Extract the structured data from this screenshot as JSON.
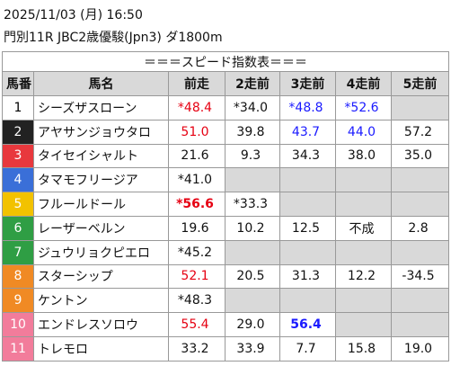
{
  "header": {
    "date": "2025/11/03 (月) 16:50",
    "race": "門別11R JBC2歳優駿(Jpn3) ダ1800m"
  },
  "table": {
    "title": "＝＝＝スピード指数表＝＝＝",
    "columns": [
      "馬番",
      "馬名",
      "前走",
      "2走前",
      "3走前",
      "4走前",
      "5走前"
    ],
    "header_color": "#d9d9d9",
    "empty_color": "#d9d9d9",
    "rows": [
      {
        "number": "1",
        "frame_color": "#ffffff",
        "number_color": "#000000",
        "name": "シーズザスローン",
        "cells": [
          {
            "text": "*48.4",
            "color": "#e60012"
          },
          {
            "text": "*34.0"
          },
          {
            "text": "*48.8",
            "color": "#1a1aff"
          },
          {
            "text": "*52.6",
            "color": "#1a1aff"
          },
          null
        ]
      },
      {
        "number": "2",
        "frame_color": "#222222",
        "number_color": "#ffffff",
        "name": "アヤサンジョウタロ",
        "cells": [
          {
            "text": "51.0",
            "color": "#e60012"
          },
          {
            "text": "39.8"
          },
          {
            "text": "43.7",
            "color": "#1a1aff"
          },
          {
            "text": "44.0",
            "color": "#1a1aff"
          },
          {
            "text": "57.2"
          }
        ]
      },
      {
        "number": "3",
        "frame_color": "#e8383d",
        "number_color": "#ffffff",
        "name": "タイセイシャルト",
        "cells": [
          {
            "text": "21.6"
          },
          {
            "text": "9.3"
          },
          {
            "text": "34.3"
          },
          {
            "text": "38.0"
          },
          {
            "text": "35.0"
          }
        ]
      },
      {
        "number": "4",
        "frame_color": "#3a6fd8",
        "number_color": "#ffffff",
        "name": "タマモフリージア",
        "cells": [
          {
            "text": "*41.0"
          },
          null,
          null,
          null,
          null
        ]
      },
      {
        "number": "5",
        "frame_color": "#f2c200",
        "number_color": "#ffffff",
        "name": "フルールドール",
        "cells": [
          {
            "text": "*56.6",
            "color": "#e60012",
            "bold": true
          },
          {
            "text": "*33.3"
          },
          null,
          null,
          null
        ]
      },
      {
        "number": "6",
        "frame_color": "#2f9e44",
        "number_color": "#ffffff",
        "name": "レーザーベルン",
        "cells": [
          {
            "text": "19.6"
          },
          {
            "text": "10.2"
          },
          {
            "text": "12.5"
          },
          {
            "text": "不成"
          },
          {
            "text": "2.8"
          }
        ]
      },
      {
        "number": "7",
        "frame_color": "#2f9e44",
        "number_color": "#ffffff",
        "name": "ジュウリョクピエロ",
        "cells": [
          {
            "text": "*45.2"
          },
          null,
          null,
          null,
          null
        ]
      },
      {
        "number": "8",
        "frame_color": "#f08a24",
        "number_color": "#ffffff",
        "name": "スターシップ",
        "cells": [
          {
            "text": "52.1",
            "color": "#e60012"
          },
          {
            "text": "20.5"
          },
          {
            "text": "31.3"
          },
          {
            "text": "12.2"
          },
          {
            "text": "-34.5"
          }
        ]
      },
      {
        "number": "9",
        "frame_color": "#f08a24",
        "number_color": "#ffffff",
        "name": "ケントン",
        "cells": [
          {
            "text": "*48.3"
          },
          null,
          null,
          null,
          null
        ]
      },
      {
        "number": "10",
        "frame_color": "#f27c9b",
        "number_color": "#ffffff",
        "name": "エンドレスソロウ",
        "cells": [
          {
            "text": "55.4",
            "color": "#e60012"
          },
          {
            "text": "29.0"
          },
          {
            "text": "56.4",
            "color": "#1a1aff",
            "bold": true
          },
          null,
          null
        ]
      },
      {
        "number": "11",
        "frame_color": "#f27c9b",
        "number_color": "#ffffff",
        "name": "トレモロ",
        "cells": [
          {
            "text": "33.2"
          },
          {
            "text": "33.9"
          },
          {
            "text": "7.7"
          },
          {
            "text": "15.8"
          },
          {
            "text": "19.0"
          }
        ]
      }
    ]
  }
}
